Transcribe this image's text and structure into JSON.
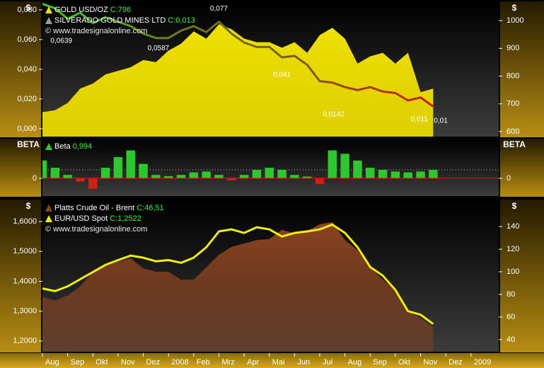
{
  "chart_data": [
    {
      "type": "area",
      "ylabel": "$",
      "y2label": "$",
      "watermark": "© www.tradesignalonline.com",
      "x": [
        0,
        0.5,
        1,
        1.5,
        2,
        2.5,
        3,
        3.5,
        4,
        4.5,
        5,
        5.5,
        6,
        6.5,
        7,
        7.5,
        8,
        8.5,
        9,
        9.5,
        10,
        10.5,
        11,
        11.5,
        12,
        12.5,
        13,
        13.5,
        14,
        14.5,
        15,
        15.5
      ],
      "xlim": [
        0,
        18.1
      ],
      "ylim": [
        -0.0053,
        0.0847
      ],
      "yticks": [
        {
          "value": 0,
          "label": "0,000"
        },
        {
          "value": 0.02,
          "label": "0,020"
        },
        {
          "value": 0.04,
          "label": "0,040"
        },
        {
          "value": 0.06,
          "label": "0,060"
        },
        {
          "value": 0.08,
          "label": "0,080"
        }
      ],
      "y2lim": [
        582,
        1064
      ],
      "y2ticks": [
        600,
        700,
        800,
        900,
        1000
      ],
      "series": [
        {
          "name": "GOLD USD/OZ",
          "last_value_label": "C:796",
          "type": "area",
          "axis": "y2",
          "color": "#f0e000",
          "values": [
            670,
            677,
            703,
            755,
            773,
            806,
            819,
            832,
            858,
            850,
            892,
            917,
            961,
            935,
            987,
            969,
            935,
            922,
            922,
            902,
            922,
            884,
            948,
            974,
            935,
            845,
            871,
            884,
            845,
            884,
            742,
            755
          ]
        },
        {
          "name": "SILVERADO GOLD MINES LTD",
          "last_value_label": "C:0,013",
          "type": "line",
          "color": "#9a9a9a",
          "colors": [
            "#3ad02a",
            "#6a7a1e",
            "#7a5a18",
            "#d01a10"
          ],
          "values": [
            0.084,
            0.081,
            0.074,
            0.078,
            0.071,
            0.075,
            0.072,
            0.069,
            0.064,
            0.061,
            0.061,
            0.066,
            0.069,
            0.065,
            0.072,
            0.064,
            0.058,
            0.055,
            0.055,
            0.048,
            0.049,
            0.043,
            0.032,
            0.031,
            0.028,
            0.026,
            0.028,
            0.025,
            0.024,
            0.019,
            0.021,
            0.015
          ]
        }
      ],
      "annotations": [
        {
          "x": 0.75,
          "value": 0.0639,
          "label": "0,0639",
          "color": "#e01010"
        },
        {
          "x": 4.6,
          "value": 0.0587,
          "label": "0,0587",
          "color": "#e01010"
        },
        {
          "x": 7.0,
          "value": 0.077,
          "label": "0,077",
          "color": "#3ad02a"
        },
        {
          "x": 9.5,
          "value": 0.041,
          "label": "0,041",
          "color": "#e01010"
        },
        {
          "x": 11.55,
          "value": 0.0142,
          "label": "0,0142",
          "color": "#e01010"
        },
        {
          "x": 14.95,
          "value": 0.011,
          "label": "0,011",
          "color": "#ffffff"
        },
        {
          "x": 15.8,
          "value": 0.01,
          "label": "0,01",
          "color": "#ffffff"
        }
      ]
    },
    {
      "type": "bar",
      "ylabel": "BETA",
      "y2label": "BETA",
      "x": [
        0,
        0.5,
        1,
        1.5,
        2,
        2.5,
        3,
        3.5,
        4,
        4.5,
        5,
        5.5,
        6,
        6.5,
        7,
        7.5,
        8,
        8.5,
        9,
        9.5,
        10,
        10.5,
        11,
        11.5,
        12,
        12.5,
        13,
        13.5,
        14,
        14.5,
        15,
        15.5
      ],
      "xlim": [
        0,
        18.1
      ],
      "ylim": [
        -2.1,
        4.6
      ],
      "yticks": [
        0
      ],
      "y2lim": [
        -2.1,
        4.6
      ],
      "y2ticks": [
        0
      ],
      "series": [
        {
          "name": "Beta",
          "last_value_label": "0,994",
          "type": "bar",
          "color": "#2ec82e",
          "negative_color": "#d02010",
          "values": [
            2.1,
            1.25,
            0.4,
            -0.4,
            -1.25,
            1.25,
            2.5,
            3.3,
            1.7,
            0.4,
            0.25,
            0.4,
            0.7,
            0.8,
            0.4,
            -0.25,
            0.4,
            1.0,
            1.25,
            1.0,
            0.4,
            0.2,
            -0.7,
            3.3,
            2.9,
            2.1,
            1.25,
            1.0,
            0.8,
            0.7,
            0.8,
            1.0
          ]
        }
      ]
    },
    {
      "type": "area",
      "ylabel": "$",
      "y2label": "$",
      "watermark": "© www.tradesignalonline.com",
      "x": [
        0,
        0.5,
        1,
        1.5,
        2,
        2.5,
        3,
        3.5,
        4,
        4.5,
        5,
        5.5,
        6,
        6.5,
        7,
        7.5,
        8,
        8.5,
        9,
        9.5,
        10,
        10.5,
        11,
        11.5,
        12,
        12.5,
        13,
        13.5,
        14,
        14.5,
        15,
        15.5
      ],
      "xlim": [
        0,
        18.1
      ],
      "xticks": [
        {
          "value": 0,
          "label": "Aug"
        },
        {
          "value": 1,
          "label": "Sep"
        },
        {
          "value": 2,
          "label": "Okt"
        },
        {
          "value": 3,
          "label": "Nov"
        },
        {
          "value": 4,
          "label": "Dez"
        },
        {
          "value": 5,
          "label": "2008"
        },
        {
          "value": 6,
          "label": "Feb"
        },
        {
          "value": 7,
          "label": "Mrz"
        },
        {
          "value": 8,
          "label": "Apr"
        },
        {
          "value": 9,
          "label": "Mai"
        },
        {
          "value": 10,
          "label": "Jun"
        },
        {
          "value": 11,
          "label": "Jul"
        },
        {
          "value": 12,
          "label": "Aug"
        },
        {
          "value": 13,
          "label": "Sep"
        },
        {
          "value": 14,
          "label": "Okt"
        },
        {
          "value": 15,
          "label": "Nov"
        },
        {
          "value": 16,
          "label": "Dez"
        },
        {
          "value": 17,
          "label": "2009"
        }
      ],
      "ylim": [
        1.164,
        1.669
      ],
      "yticks": [
        {
          "value": 1.2,
          "label": "1,2000"
        },
        {
          "value": 1.3,
          "label": "1,3000"
        },
        {
          "value": 1.4,
          "label": "1,4000"
        },
        {
          "value": 1.5,
          "label": "1,5000"
        },
        {
          "value": 1.6,
          "label": "1,6000"
        }
      ],
      "y2lim": [
        29.3,
        162.6
      ],
      "y2ticks": [
        40,
        60,
        80,
        100,
        120,
        140
      ],
      "series": [
        {
          "name": "Platts Crude Oil - Brent",
          "last_value_label": "C:46,51",
          "type": "area",
          "axis": "y2",
          "color": "#8a4420",
          "values": [
            77.7,
            74.6,
            79,
            87,
            100,
            106,
            109,
            112,
            103,
            100,
            100,
            93,
            93,
            104,
            115,
            122,
            125,
            128,
            129,
            137,
            134,
            136,
            142,
            144,
            128,
            119,
            104,
            93,
            84,
            65,
            59,
            51
          ]
        },
        {
          "name": "EUR/USD Spot",
          "last_value_label": "C:1,2522",
          "type": "line",
          "color": "#f0f000",
          "values": [
            1.376,
            1.367,
            1.383,
            1.407,
            1.431,
            1.455,
            1.471,
            1.486,
            1.479,
            1.467,
            1.471,
            1.462,
            1.479,
            1.514,
            1.567,
            1.574,
            1.562,
            1.581,
            1.574,
            1.55,
            1.562,
            1.567,
            1.574,
            1.59,
            1.562,
            1.514,
            1.448,
            1.419,
            1.371,
            1.3,
            1.288,
            1.257
          ]
        }
      ]
    }
  ]
}
